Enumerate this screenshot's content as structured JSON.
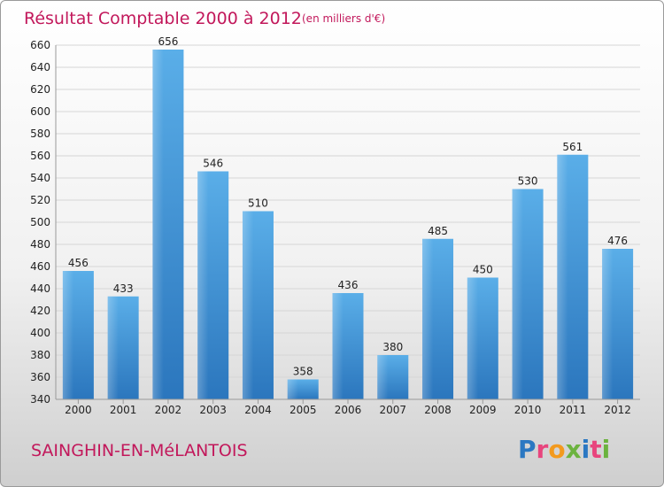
{
  "chart_data": {
    "type": "bar",
    "title": "Résultat Comptable 2000 à 2012",
    "subtitle": "(en milliers d'€)",
    "categories": [
      "2000",
      "2001",
      "2002",
      "2003",
      "2004",
      "2005",
      "2006",
      "2007",
      "2008",
      "2009",
      "2010",
      "2011",
      "2012"
    ],
    "values": [
      456,
      433,
      656,
      546,
      510,
      358,
      436,
      380,
      485,
      450,
      530,
      561,
      476
    ],
    "ylim": [
      340,
      660
    ],
    "yticks": [
      340,
      360,
      380,
      400,
      420,
      440,
      460,
      480,
      500,
      520,
      540,
      560,
      580,
      600,
      620,
      640,
      660
    ],
    "grid": true,
    "bar_color": "#3b8fd4"
  },
  "footer": {
    "town": "SAINGHIN-EN-MéLANTOIS",
    "logo": "Proxiti",
    "logo_colors": [
      "#2b78c2",
      "#e8457d",
      "#f39a1e",
      "#6cb33f",
      "#2b78c2",
      "#e8457d",
      "#6cb33f"
    ]
  }
}
